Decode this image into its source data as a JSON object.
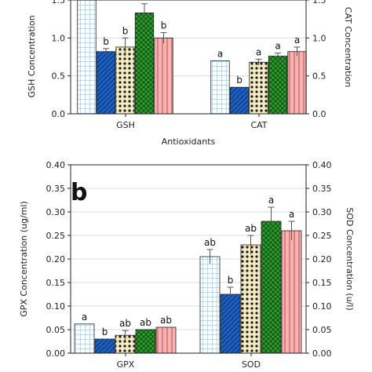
{
  "figure": {
    "panels": [
      {
        "id": "a",
        "panel_label": "",
        "xlabel": "Antioxidants",
        "ylabel_left": "GSH Concentration",
        "ylabel_right": "CAT Concentration",
        "left_ticks": [
          "0.0",
          "0.5",
          "1.0",
          "1.5"
        ],
        "right_ticks": [
          "0.0",
          "0.5",
          "1.0",
          "1.5"
        ]
      },
      {
        "id": "b",
        "panel_label": "b",
        "xlabel": "",
        "ylabel_left": "GPX Concentration (ug/ml)",
        "ylabel_right": "SOD Concentration (u/l)",
        "left_ticks": [
          "0.00",
          "0.05",
          "0.10",
          "0.15",
          "0.20",
          "0.25",
          "0.30",
          "0.35",
          "0.40"
        ],
        "right_ticks": [
          "0.00",
          "0.05",
          "0.10",
          "0.15",
          "0.20",
          "0.25",
          "0.30",
          "0.35",
          "0.40"
        ]
      }
    ]
  },
  "colors": {
    "grid_pattern": "#a8c8e0",
    "blue_hatch": "#1f5fbf",
    "dots_fill": "#f3ecc2",
    "green_cross": "#2ea02e",
    "pink": "#f4b4b4",
    "pink_lines": "#cc4444",
    "error_bar": "#555555",
    "grid_line": "#dddddd"
  },
  "chart_data": [
    {
      "type": "bar",
      "panel": "a",
      "title": "",
      "xlabel": "Antioxidants",
      "ylabel": "GSH Concentration",
      "ylabel_right": "CAT Concentration",
      "ylim": [
        0,
        1.5
      ],
      "grid": true,
      "categories": [
        "GSH",
        "CAT"
      ],
      "patterns": [
        "grid",
        "blue-hatch",
        "dots",
        "green-cross",
        "pink-lines"
      ],
      "values": [
        [
          1.55,
          0.82,
          0.88,
          1.33,
          1.0
        ],
        [
          0.7,
          0.35,
          0.68,
          0.76,
          0.82
        ]
      ],
      "errors": [
        [
          0.0,
          0.04,
          0.12,
          0.12,
          0.07
        ],
        [
          0.0,
          0.0,
          0.04,
          0.04,
          0.06
        ]
      ],
      "letters": [
        [
          "",
          "b",
          "b",
          "",
          "b"
        ],
        [
          "a",
          "b",
          "a",
          "a",
          "a"
        ]
      ]
    },
    {
      "type": "bar",
      "panel": "b",
      "title": "",
      "xlabel": "",
      "ylabel": "GPX Concentration (ug/ml)",
      "ylabel_right": "SOD Concentration (u/l)",
      "ylim": [
        0,
        0.4
      ],
      "grid": true,
      "categories": [
        "GPX",
        "SOD"
      ],
      "patterns": [
        "grid",
        "blue-hatch",
        "dots",
        "green-cross",
        "pink-lines"
      ],
      "values": [
        [
          0.062,
          0.03,
          0.038,
          0.05,
          0.055
        ],
        [
          0.205,
          0.125,
          0.23,
          0.28,
          0.26
        ]
      ],
      "errors": [
        [
          0.0,
          0.0,
          0.01,
          0.0,
          0.0
        ],
        [
          0.015,
          0.015,
          0.02,
          0.03,
          0.02
        ]
      ],
      "letters": [
        [
          "a",
          "b",
          "ab",
          "ab",
          "ab"
        ],
        [
          "ab",
          "b",
          "ab",
          "a",
          "a"
        ]
      ]
    }
  ]
}
